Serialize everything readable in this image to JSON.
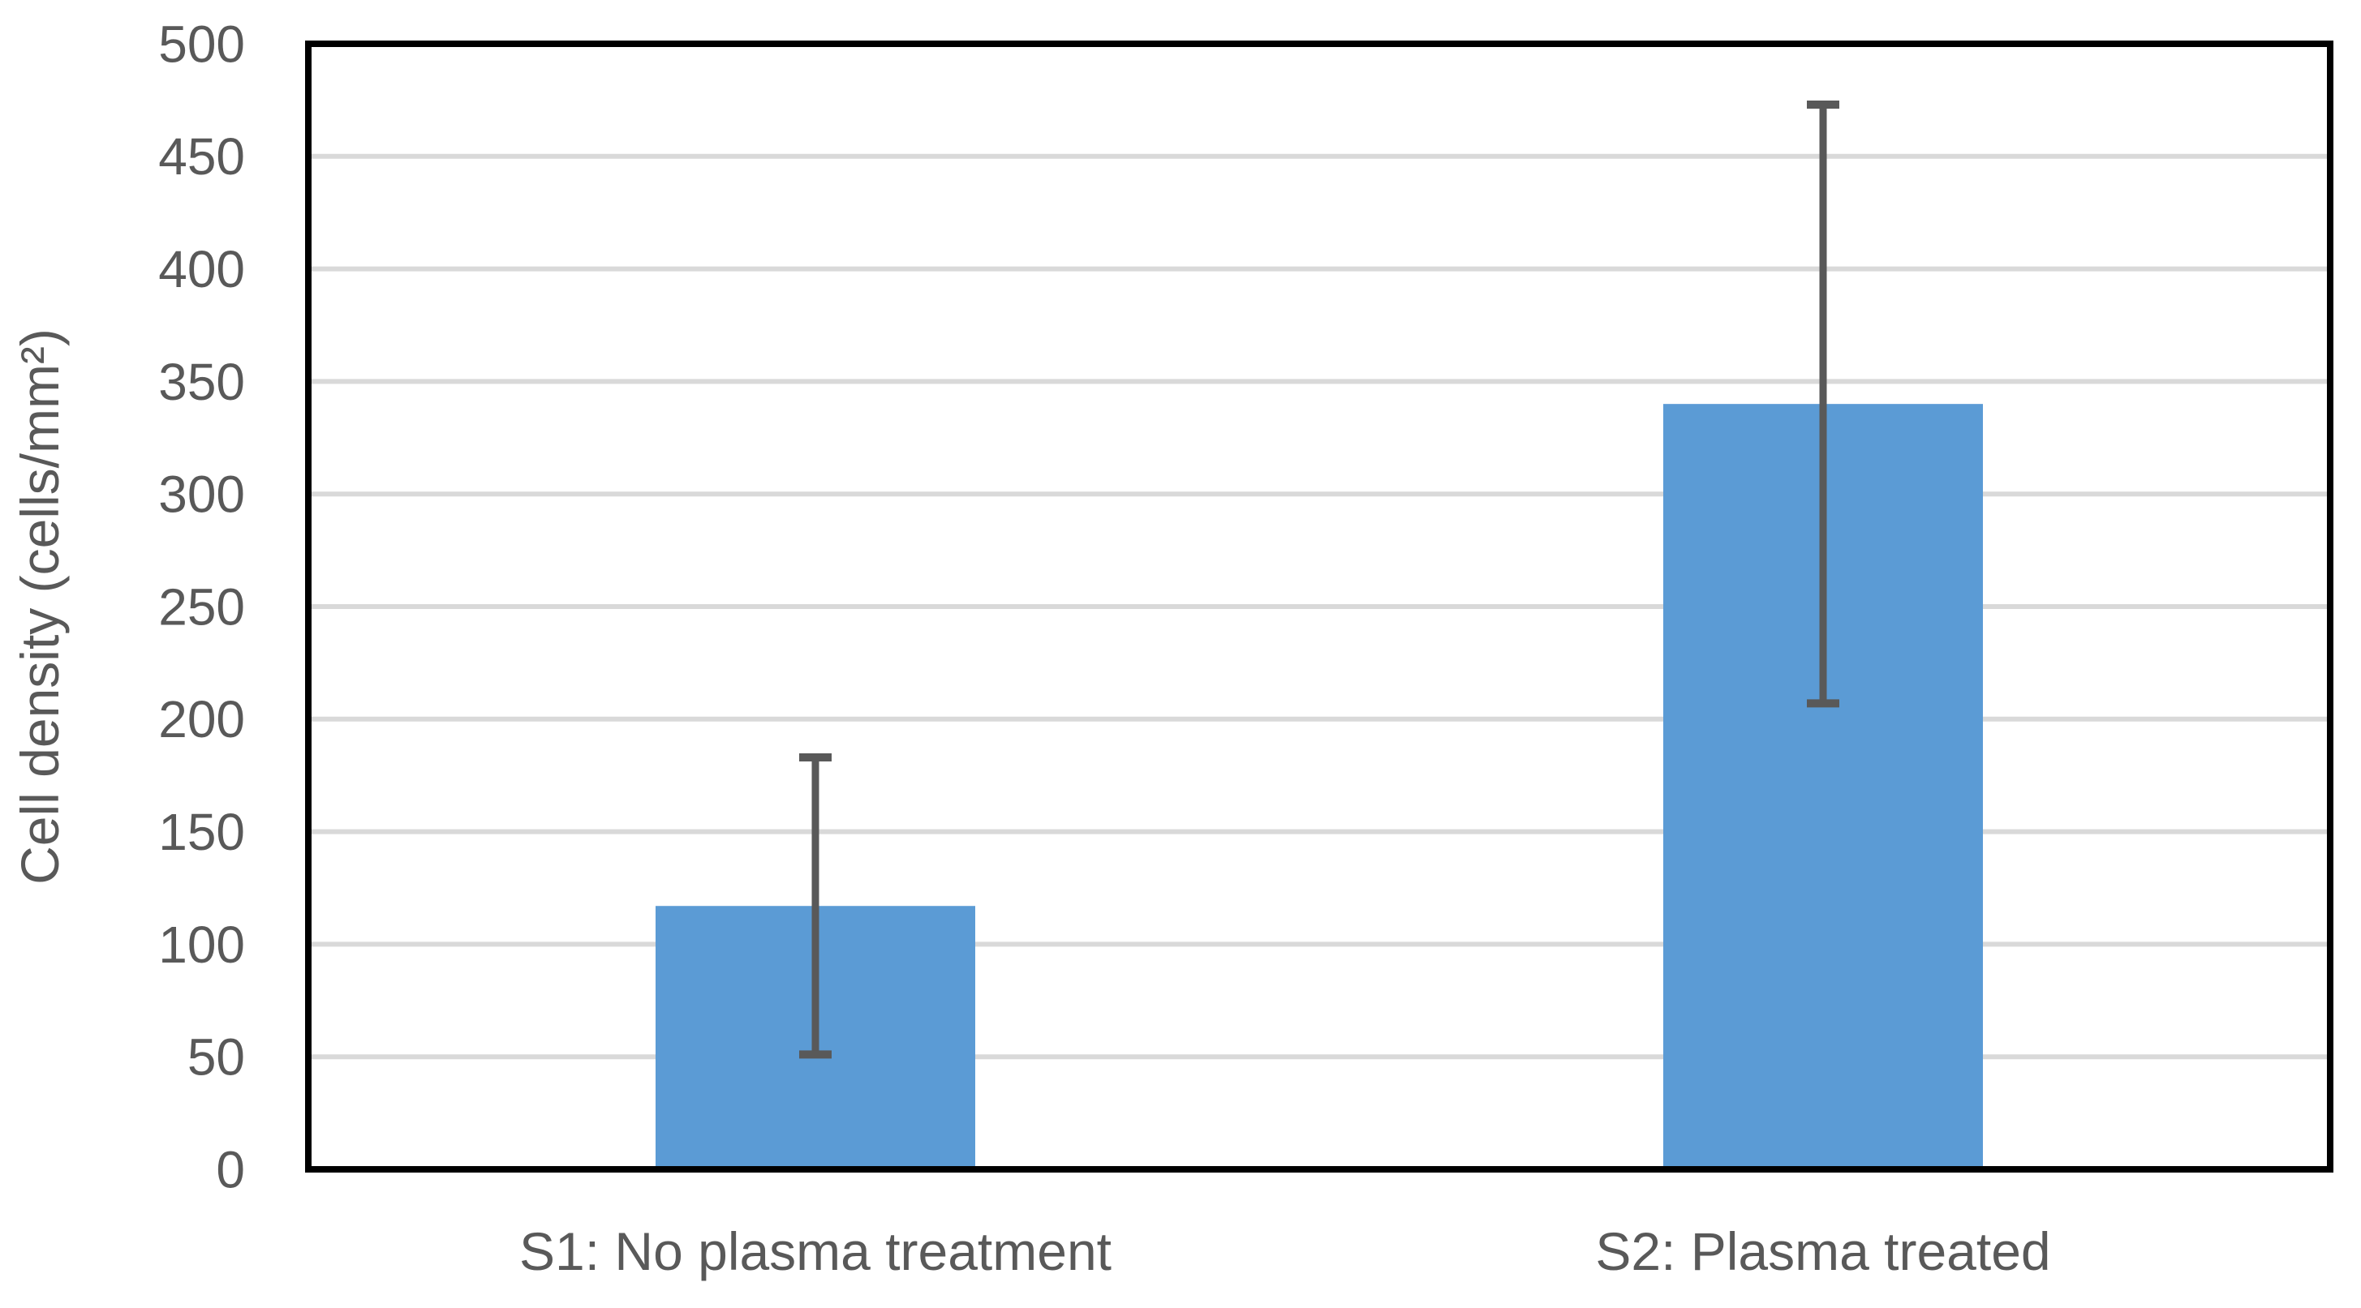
{
  "chart_data": {
    "type": "bar",
    "title": "",
    "xlabel": "",
    "ylabel": "Cell density (cells/mm²)",
    "categories": [
      "S1: No plasma treatment",
      "S2: Plasma treated"
    ],
    "values": [
      117,
      340
    ],
    "error_bars": [
      66,
      133
    ],
    "error_ranges": [
      [
        51,
        183
      ],
      [
        207,
        473
      ]
    ],
    "ylim": [
      0,
      500
    ],
    "ytick_step": 50,
    "ytick_labels": [
      "0",
      "50",
      "100",
      "150",
      "200",
      "250",
      "300",
      "350",
      "400",
      "450",
      "500"
    ],
    "grid": "horizontal",
    "legend_position": "none",
    "colors": {
      "bar": "#5B9BD5",
      "error_bar": "#595959",
      "gridline": "#D9D9D9",
      "axis_text": "#595959",
      "plot_border": "#000000",
      "background": "#FFFFFF"
    }
  }
}
